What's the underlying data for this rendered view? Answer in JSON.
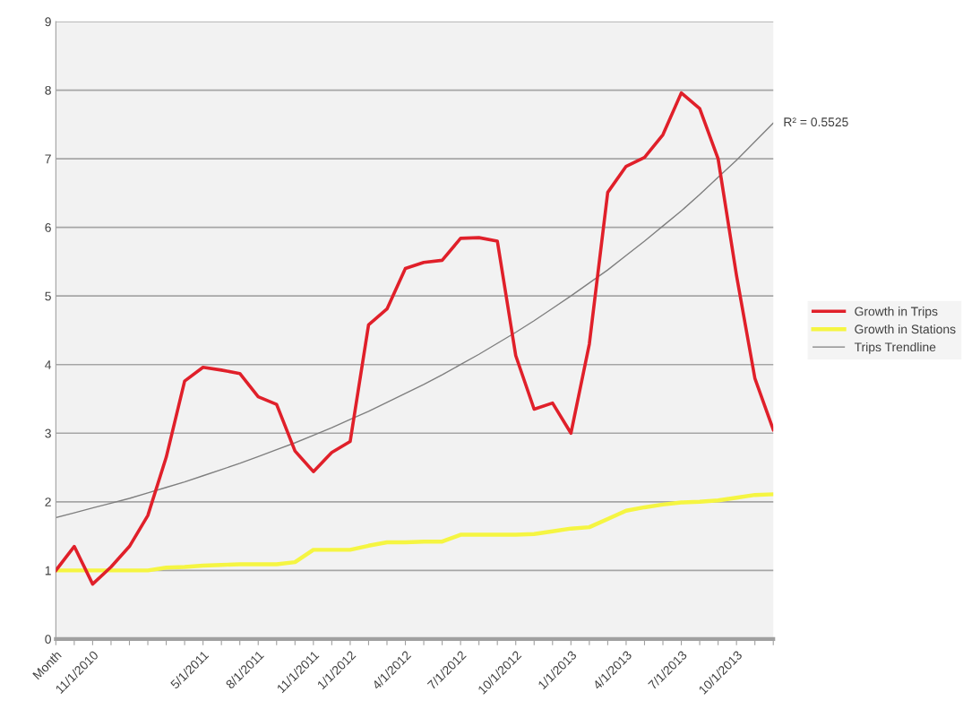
{
  "chart_data": {
    "type": "line",
    "categories": [
      "Month",
      null,
      "11/1/2010",
      null,
      null,
      null,
      null,
      null,
      "5/1/2011",
      null,
      null,
      "8/1/2011",
      null,
      null,
      "11/1/2011",
      null,
      "1/1/2012",
      null,
      null,
      "4/1/2012",
      null,
      null,
      "7/1/2012",
      null,
      null,
      "10/1/2012",
      null,
      null,
      "1/1/2013",
      null,
      null,
      "4/1/2013",
      null,
      null,
      "7/1/2013",
      null,
      null,
      "10/1/2013",
      null,
      null
    ],
    "series": [
      {
        "name": "Growth in Trips",
        "color": "#e0202a",
        "values": [
          1.0,
          1.35,
          0.8,
          1.05,
          1.35,
          1.8,
          2.65,
          3.76,
          3.96,
          3.92,
          3.87,
          3.53,
          3.42,
          2.74,
          2.44,
          2.72,
          2.88,
          4.58,
          4.81,
          5.4,
          5.49,
          5.52,
          5.84,
          5.85,
          5.8,
          4.13,
          3.35,
          3.44,
          3.0,
          4.3,
          6.51,
          6.89,
          7.02,
          7.35,
          7.96,
          7.73,
          7.0,
          5.3,
          3.8,
          3.05
        ]
      },
      {
        "name": "Growth in Stations",
        "color": "#f5f542",
        "values": [
          1.0,
          1.0,
          1.0,
          1.0,
          1.0,
          1.0,
          1.04,
          1.05,
          1.07,
          1.08,
          1.09,
          1.09,
          1.09,
          1.12,
          1.3,
          1.3,
          1.3,
          1.36,
          1.41,
          1.41,
          1.42,
          1.42,
          1.52,
          1.52,
          1.52,
          1.52,
          1.53,
          1.57,
          1.61,
          1.63,
          1.75,
          1.87,
          1.92,
          1.96,
          1.99,
          2.0,
          2.02,
          2.06,
          2.1,
          2.11
        ]
      },
      {
        "name": "Trips Trendline",
        "color": "#7f7f7f",
        "values": [
          1.77,
          1.84,
          1.91,
          1.98,
          2.05,
          2.13,
          2.21,
          2.29,
          2.38,
          2.47,
          2.56,
          2.66,
          2.76,
          2.86,
          2.97,
          3.08,
          3.2,
          3.32,
          3.45,
          3.58,
          3.71,
          3.85,
          4.0,
          4.15,
          4.31,
          4.47,
          4.64,
          4.82,
          5.0,
          5.19,
          5.38,
          5.59,
          5.8,
          6.02,
          6.24,
          6.48,
          6.73,
          6.98,
          7.25,
          7.52
        ]
      }
    ],
    "annotations": [
      "R² = 0.5525"
    ],
    "ylim": [
      0,
      9
    ],
    "yticks": [
      0,
      1,
      2,
      3,
      4,
      5,
      6,
      7,
      8,
      9
    ],
    "grid": "y",
    "legend": "right",
    "marker": "none",
    "line_style": "solid"
  }
}
